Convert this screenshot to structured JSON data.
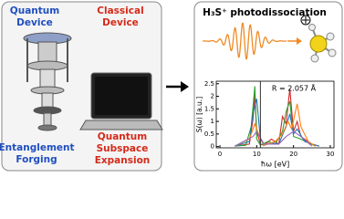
{
  "left_panel": {
    "quantum_device": [
      "Quantum",
      "Device"
    ],
    "classical_device": [
      "Classical",
      "Device"
    ],
    "entanglement_forging": [
      "Entanglement",
      "Forging"
    ],
    "quantum_subspace_expansion": [
      "Quantum",
      "Subspace",
      "Expansion"
    ]
  },
  "right_panel": {
    "title": "H₃S⁺ photodissociation",
    "spectrum": {
      "type": "line",
      "ylabel": "S(ω) [a.u.]",
      "xlabel": "ħω [eV]",
      "annotation": "R = 2.057 Å",
      "vline": 11,
      "xlim": [
        -1,
        31
      ],
      "ylim": [
        -0.05,
        2.6
      ],
      "xticks": [
        0,
        10,
        20,
        30
      ],
      "yticks": [
        0,
        0.5,
        1,
        1.5,
        2,
        2.5
      ],
      "series": [
        {
          "color": "#d62728",
          "x": [
            4,
            8,
            9,
            9.5,
            10,
            11,
            12,
            14,
            16,
            17,
            18,
            19,
            20,
            21,
            22,
            23,
            24,
            25,
            27
          ],
          "values": [
            0.02,
            0.1,
            1.1,
            2.1,
            0.6,
            0.1,
            0.05,
            0.3,
            0.1,
            1.2,
            0.9,
            2.3,
            0.6,
            1.0,
            0.4,
            0.3,
            0.2,
            0.1,
            0.02
          ]
        },
        {
          "color": "#2ca02c",
          "x": [
            4,
            7,
            8.5,
            9,
            9.5,
            10,
            11,
            13,
            15,
            17,
            18,
            19,
            20,
            22,
            24,
            26
          ],
          "values": [
            0.02,
            0.05,
            0.8,
            1.6,
            2.4,
            0.3,
            0.05,
            0.2,
            0.1,
            0.6,
            1.4,
            1.8,
            0.4,
            0.3,
            0.15,
            0.02
          ]
        },
        {
          "color": "#1f77b4",
          "x": [
            4,
            8,
            9,
            10,
            11,
            12,
            14,
            16,
            18,
            19,
            20,
            21,
            23,
            25,
            27
          ],
          "values": [
            0.02,
            0.2,
            1.3,
            1.9,
            0.3,
            0.05,
            0.15,
            0.1,
            0.8,
            1.3,
            0.5,
            0.7,
            0.2,
            0.1,
            0.02
          ]
        },
        {
          "color": "#ff7f0e",
          "x": [
            4,
            8,
            9.5,
            10.5,
            12,
            15,
            17,
            18.5,
            19.5,
            21,
            22,
            24,
            26
          ],
          "values": [
            0.02,
            0.3,
            0.9,
            0.5,
            0.05,
            0.2,
            0.5,
            1.0,
            0.7,
            1.7,
            0.8,
            0.2,
            0.02
          ]
        },
        {
          "color": "#9467bd",
          "x": [
            4,
            9,
            10,
            12,
            16,
            18,
            20,
            22,
            25
          ],
          "values": [
            0.02,
            0.4,
            0.6,
            0.1,
            0.1,
            0.4,
            0.6,
            0.4,
            0.02
          ]
        }
      ]
    }
  }
}
